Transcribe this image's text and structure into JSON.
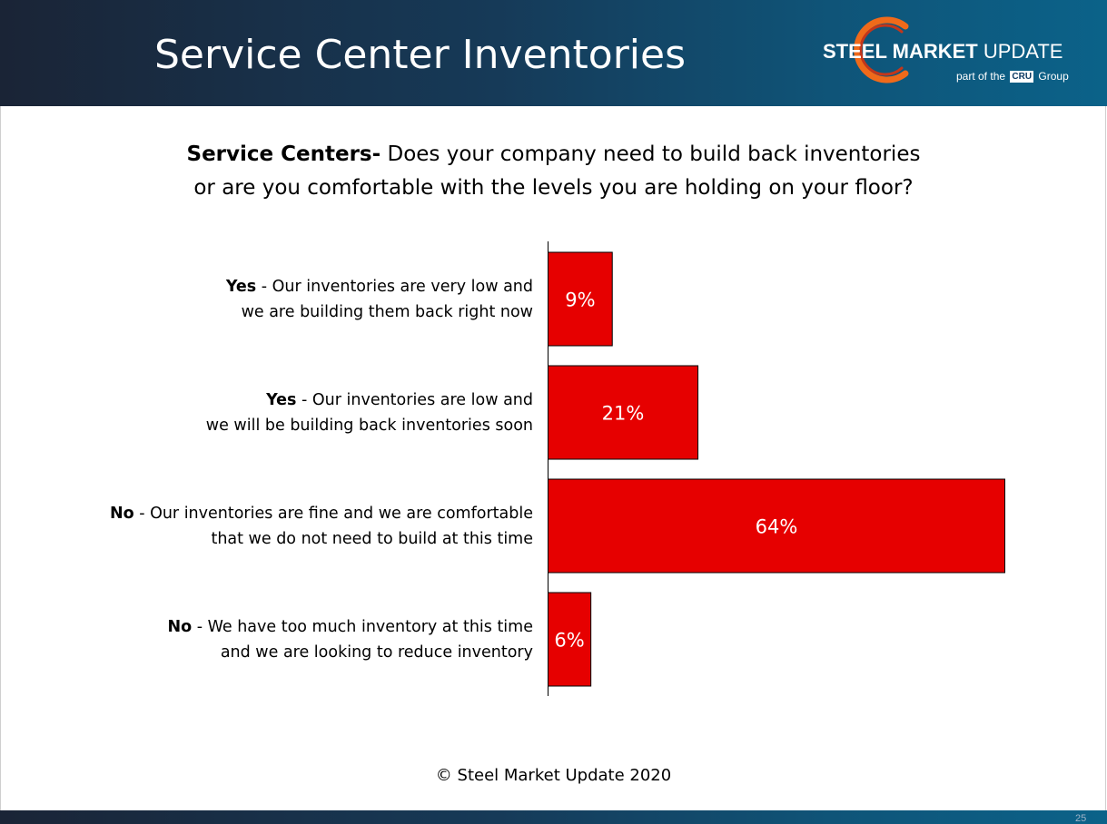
{
  "header": {
    "title": "Service Center Inventories",
    "logo": {
      "name_bold": "STEEL MARKET",
      "name_regular": " UPDATE",
      "sub_prefix": "part of the",
      "sub_box": "CRU",
      "sub_suffix": "Group"
    }
  },
  "question": {
    "bold": "Service Centers-",
    "line1": " Does your company need to build back inventories",
    "line2": "or are you comfortable with the levels you are holding on your floor?"
  },
  "chart_data": {
    "type": "bar",
    "orientation": "horizontal",
    "categories": [
      {
        "bold": "Yes",
        "line1": " - Our inventories are very low and",
        "line2": "we are building them back right now"
      },
      {
        "bold": "Yes",
        "line1": " - Our inventories are low and",
        "line2": "we will be building back inventories soon"
      },
      {
        "bold": "No",
        "line1": " - Our inventories are fine and we are comfortable",
        "line2": "that we do not need to build at this time"
      },
      {
        "bold": "No",
        "line1": " - We have too much inventory at this time",
        "line2": "and we are looking to reduce inventory"
      }
    ],
    "values": [
      9,
      21,
      64,
      6
    ],
    "data_labels": [
      "9%",
      "21%",
      "64%",
      "6%"
    ],
    "unit": "%",
    "xlim": [
      0,
      64
    ],
    "bar_color": "#e60000",
    "grid": false,
    "legend": "none"
  },
  "footer": {
    "copyright": "© Steel Market Update 2020",
    "page_number": "25"
  }
}
